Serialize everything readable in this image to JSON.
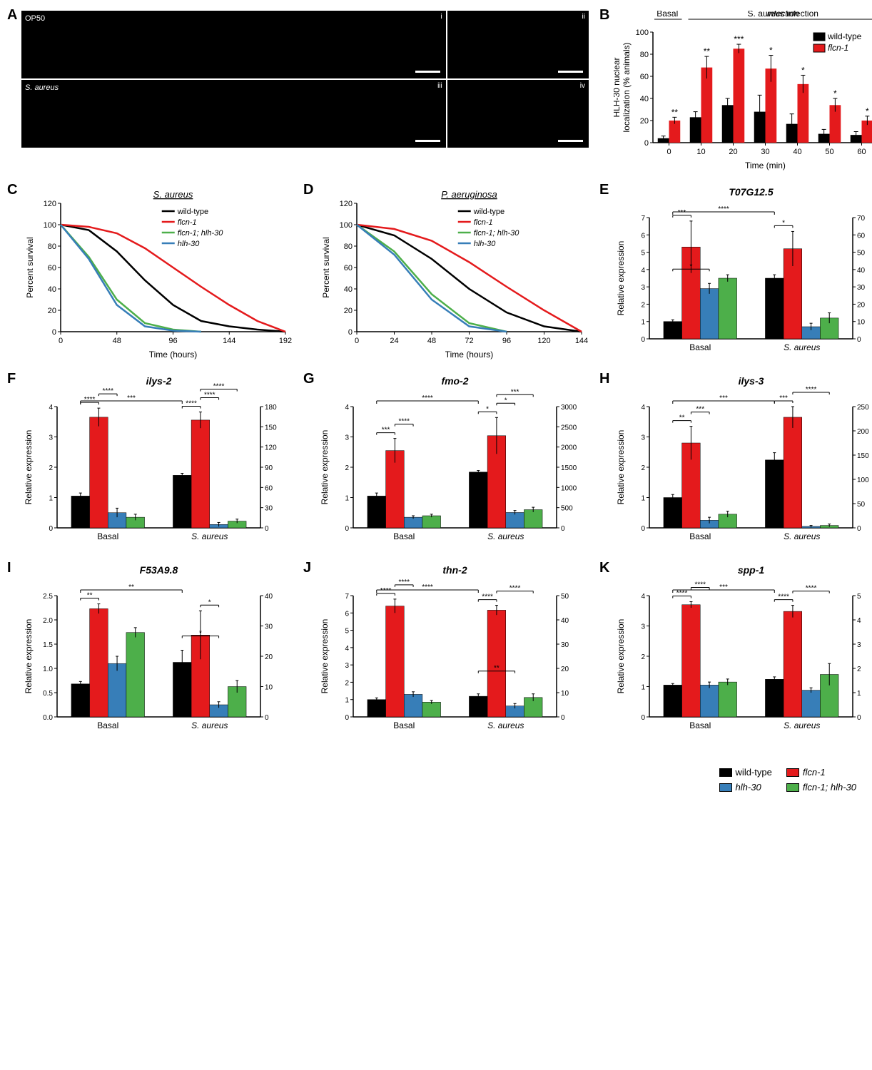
{
  "panelA": {
    "label": "A",
    "conditions": [
      "OP50",
      "S. aureus"
    ],
    "romans": [
      "i",
      "ii",
      "iii",
      "iv"
    ]
  },
  "panelB": {
    "label": "B",
    "header_basal": "Basal",
    "header_infection": "S. aureus infection",
    "ylabel": "HLH-30 nuclear\nlocalization (% animals)",
    "xlabel": "Time (min)",
    "legend": [
      {
        "name": "wild-type",
        "color": "#000000"
      },
      {
        "name": "flcn-1",
        "color": "#e41a1c",
        "italic": true
      }
    ],
    "timepoints": [
      0,
      10,
      20,
      30,
      40,
      50,
      60
    ],
    "wt_values": [
      4,
      23,
      34,
      28,
      17,
      8,
      7
    ],
    "wt_err": [
      2,
      5,
      6,
      15,
      9,
      4,
      3
    ],
    "flcn_values": [
      20,
      68,
      85,
      67,
      53,
      34,
      20
    ],
    "flcn_err": [
      3,
      10,
      4,
      12,
      8,
      6,
      4
    ],
    "sig": [
      "**",
      "**",
      "***",
      "*",
      "*",
      "*",
      "*"
    ],
    "ylim": [
      0,
      100
    ],
    "ytick_step": 20
  },
  "panelC": {
    "label": "C",
    "title": "S. aureus",
    "ylabel": "Percent survival",
    "xlabel": "Time (hours)",
    "xlim": [
      0,
      192
    ],
    "xtick_step": 48,
    "ylim": [
      0,
      120
    ],
    "ytick_step": 20,
    "series": [
      {
        "name": "wild-type",
        "color": "#000000",
        "x": [
          0,
          24,
          48,
          72,
          96,
          120,
          144,
          168,
          192
        ],
        "y": [
          100,
          95,
          75,
          48,
          25,
          10,
          5,
          2,
          0
        ]
      },
      {
        "name": "flcn-1",
        "color": "#e41a1c",
        "italic": true,
        "x": [
          0,
          24,
          48,
          72,
          96,
          120,
          144,
          168,
          192
        ],
        "y": [
          100,
          98,
          92,
          78,
          60,
          42,
          25,
          10,
          0
        ]
      },
      {
        "name": "flcn-1; hlh-30",
        "color": "#4daf4a",
        "italic": true,
        "x": [
          0,
          24,
          48,
          72,
          96,
          120
        ],
        "y": [
          100,
          70,
          30,
          8,
          2,
          0
        ]
      },
      {
        "name": "hlh-30",
        "color": "#377eb8",
        "italic": true,
        "x": [
          0,
          24,
          48,
          72,
          96,
          120
        ],
        "y": [
          100,
          68,
          25,
          5,
          1,
          0
        ]
      }
    ]
  },
  "panelD": {
    "label": "D",
    "title": "P. aeruginosa",
    "ylabel": "Percent survival",
    "xlabel": "Time (hours)",
    "xlim": [
      0,
      144
    ],
    "xtick_step": 24,
    "ylim": [
      0,
      120
    ],
    "ytick_step": 20,
    "series": [
      {
        "name": "wild-type",
        "color": "#000000",
        "x": [
          0,
          24,
          48,
          72,
          96,
          120,
          144
        ],
        "y": [
          100,
          90,
          68,
          40,
          18,
          5,
          0
        ]
      },
      {
        "name": "flcn-1",
        "color": "#e41a1c",
        "italic": true,
        "x": [
          0,
          24,
          48,
          72,
          96,
          120,
          144
        ],
        "y": [
          100,
          96,
          85,
          65,
          42,
          20,
          0
        ]
      },
      {
        "name": "flcn-1; hlh-30",
        "color": "#4daf4a",
        "italic": true,
        "x": [
          0,
          24,
          48,
          72,
          96
        ],
        "y": [
          100,
          75,
          35,
          8,
          0
        ]
      },
      {
        "name": "hlh-30",
        "color": "#377eb8",
        "italic": true,
        "x": [
          0,
          24,
          48,
          72,
          96
        ],
        "y": [
          100,
          72,
          30,
          5,
          0
        ]
      }
    ]
  },
  "barGenes": {
    "conditions": [
      "Basal",
      "S. aureus"
    ],
    "genotypes": [
      "wild-type",
      "flcn-1",
      "hlh-30",
      "flcn-1; hlh-30"
    ],
    "colors": [
      "#000000",
      "#e41a1c",
      "#377eb8",
      "#4daf4a"
    ],
    "panels": {
      "E": {
        "title": "T07G12.5",
        "left_max": 7,
        "left_step": 1,
        "right_max": 70,
        "right_step": 10,
        "basal": [
          1.0,
          5.3,
          2.9,
          3.5
        ],
        "basal_err": [
          0.1,
          1.5,
          0.3,
          0.2
        ],
        "sa": [
          35,
          52,
          7,
          12
        ],
        "sa_err": [
          2,
          10,
          2,
          3
        ],
        "sig_basal": [
          [
            "***",
            0,
            1
          ],
          [
            "*",
            0,
            2
          ]
        ],
        "sig_sa": [
          [
            "*",
            0,
            1
          ]
        ],
        "sig_cross": [
          [
            "****",
            0,
            0
          ]
        ]
      },
      "F": {
        "title": "ilys-2",
        "left_max": 4,
        "left_step": 1,
        "right_max": 180,
        "right_step": 30,
        "basal": [
          1.05,
          3.65,
          0.5,
          0.35
        ],
        "basal_err": [
          0.1,
          0.3,
          0.15,
          0.1
        ],
        "sa": [
          78,
          160,
          5,
          10
        ],
        "sa_err": [
          3,
          12,
          3,
          3
        ],
        "sig_basal": [
          [
            "****",
            0,
            1
          ],
          [
            "****",
            1,
            2
          ]
        ],
        "sig_sa": [
          [
            "****",
            0,
            1
          ],
          [
            "****",
            1,
            2
          ],
          [
            "****",
            1,
            3
          ]
        ],
        "sig_cross": [
          [
            "***",
            0,
            0
          ]
        ]
      },
      "G": {
        "title": "fmo-2",
        "left_max": 4,
        "left_step": 1,
        "right_max": 3000,
        "right_step": 500,
        "basal": [
          1.05,
          2.55,
          0.35,
          0.4
        ],
        "basal_err": [
          0.1,
          0.4,
          0.05,
          0.05
        ],
        "sa": [
          1380,
          2280,
          380,
          450
        ],
        "sa_err": [
          40,
          450,
          50,
          60
        ],
        "sig_basal": [
          [
            "***",
            0,
            1
          ],
          [
            "****",
            1,
            2
          ]
        ],
        "sig_sa": [
          [
            "*",
            0,
            1
          ],
          [
            "*",
            1,
            2
          ],
          [
            "***",
            1,
            3
          ]
        ],
        "sig_cross": [
          [
            "****",
            0,
            0
          ]
        ]
      },
      "H": {
        "title": "ilys-3",
        "left_max": 4,
        "left_step": 1,
        "right_max": 250,
        "right_step": 50,
        "basal": [
          1.0,
          2.8,
          0.25,
          0.45
        ],
        "basal_err": [
          0.1,
          0.55,
          0.1,
          0.1
        ],
        "sa": [
          140,
          228,
          3,
          5
        ],
        "sa_err": [
          15,
          22,
          2,
          3
        ],
        "sig_basal": [
          [
            "**",
            0,
            1
          ],
          [
            "***",
            1,
            2
          ]
        ],
        "sig_sa": [
          [
            "***",
            0,
            1
          ],
          [
            "****",
            1,
            3
          ]
        ],
        "sig_cross": [
          [
            "***",
            0,
            0
          ]
        ]
      },
      "I": {
        "title": "F53A9.8",
        "left_max": 2.5,
        "left_step": 0.5,
        "right_max": 40,
        "right_step": 10,
        "basal": [
          0.68,
          2.23,
          1.1,
          1.74
        ],
        "basal_err": [
          0.05,
          0.1,
          0.15,
          0.1
        ],
        "sa": [
          18,
          27,
          4,
          10
        ],
        "sa_err": [
          4,
          8,
          1,
          2
        ],
        "sig_basal": [
          [
            "**",
            0,
            1
          ]
        ],
        "sig_sa": [
          [
            "*",
            1,
            2
          ],
          [
            "*",
            0,
            2
          ]
        ],
        "sig_cross": [
          [
            "**",
            0,
            0
          ]
        ]
      },
      "J": {
        "title": "thn-2",
        "left_max": 7,
        "left_step": 1,
        "right_max": 50,
        "right_step": 10,
        "basal": [
          1.0,
          6.4,
          1.3,
          0.85
        ],
        "basal_err": [
          0.1,
          0.4,
          0.15,
          0.1
        ],
        "sa": [
          8.5,
          44,
          4.5,
          8
        ],
        "sa_err": [
          1,
          2,
          1,
          1.5
        ],
        "sig_basal": [
          [
            "****",
            0,
            1
          ],
          [
            "****",
            1,
            2
          ]
        ],
        "sig_sa": [
          [
            "****",
            0,
            1
          ],
          [
            "****",
            1,
            3
          ],
          [
            "**",
            0,
            2
          ]
        ],
        "sig_cross": [
          [
            "****",
            0,
            0
          ]
        ]
      },
      "K": {
        "title": "spp-1",
        "left_max": 4,
        "left_step": 1,
        "right_max": 5,
        "right_step": 1,
        "basal": [
          1.05,
          3.7,
          1.05,
          1.15
        ],
        "basal_err": [
          0.05,
          0.1,
          0.1,
          0.1
        ],
        "sa": [
          1.55,
          4.35,
          1.1,
          1.75
        ],
        "sa_err": [
          0.1,
          0.25,
          0.1,
          0.45
        ],
        "sig_basal": [
          [
            "****",
            0,
            1
          ],
          [
            "****",
            1,
            2
          ]
        ],
        "sig_sa": [
          [
            "****",
            0,
            1
          ],
          [
            "****",
            1,
            3
          ]
        ],
        "sig_cross": [
          [
            "***",
            0,
            0
          ]
        ]
      }
    }
  },
  "bottomLegend": [
    {
      "name": "wild-type",
      "color": "#000000",
      "italic": false
    },
    {
      "name": "hlh-30",
      "color": "#377eb8",
      "italic": true
    },
    {
      "name": "flcn-1",
      "color": "#e41a1c",
      "italic": true
    },
    {
      "name": "flcn-1; hlh-30",
      "color": "#4daf4a",
      "italic": true
    }
  ],
  "ylabel_expr": "Relative expression"
}
